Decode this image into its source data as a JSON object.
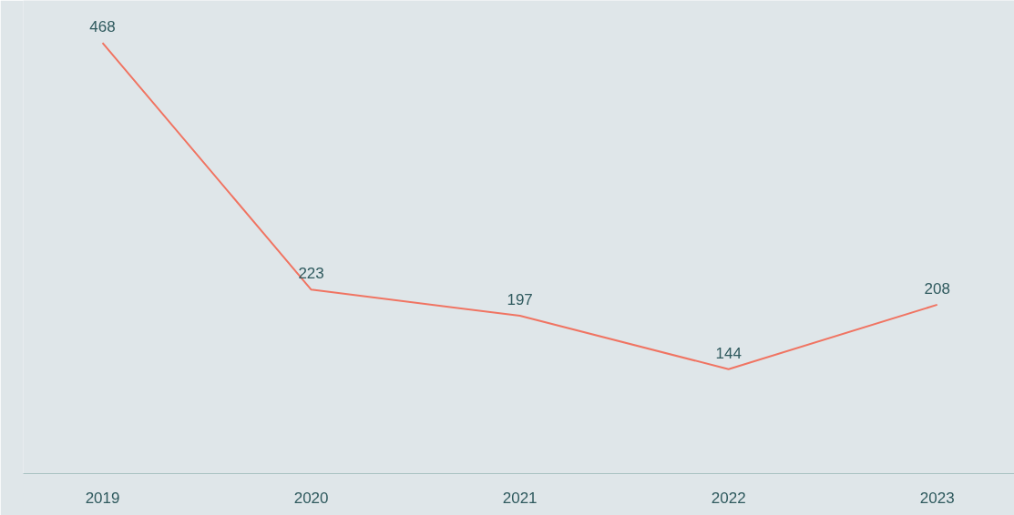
{
  "chart_data": {
    "type": "line",
    "categories": [
      "2019",
      "2020",
      "2021",
      "2022",
      "2023"
    ],
    "series": [
      {
        "color": "#f07462",
        "values": [
          468,
          223,
          197,
          144,
          208
        ]
      }
    ],
    "data_labels": true,
    "grid": false,
    "marker": "none",
    "line_style": "solid",
    "tick_labels": "x"
  }
}
